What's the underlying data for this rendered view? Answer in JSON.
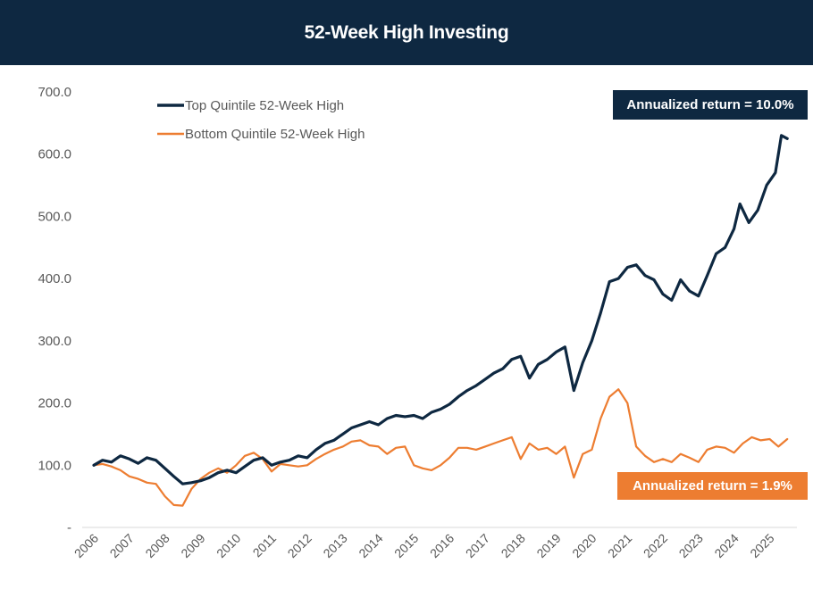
{
  "header": {
    "title": "52-Week High Investing"
  },
  "annotations": {
    "top": "Annualized return = 10.0%",
    "bottom": "Annualized return = 1.9%"
  },
  "colors": {
    "top_series": "#0e2841",
    "bottom_series": "#ed7d31",
    "header_bg": "#0e2841"
  },
  "chart_data": {
    "type": "line",
    "title": "52-Week High Investing",
    "xlabel": "",
    "ylabel": "",
    "ylim": [
      0,
      700
    ],
    "xlim": [
      "2006-01-01",
      "2025-09-01"
    ],
    "y_ticks": [
      "-",
      "100.0",
      "200.0",
      "300.0",
      "400.0",
      "500.0",
      "600.0",
      "700.0"
    ],
    "x_ticks": [
      "2006",
      "2007",
      "2008",
      "2009",
      "2010",
      "2011",
      "2012",
      "2013",
      "2014",
      "2015",
      "2016",
      "2017",
      "2018",
      "2019",
      "2020",
      "2021",
      "2022",
      "2023",
      "2024",
      "2025"
    ],
    "grid": false,
    "legend_position": "top-left",
    "series": [
      {
        "name": "Top Quintile 52-Week High",
        "color": "#0e2841",
        "points": [
          [
            "2006-01",
            100
          ],
          [
            "2006-04",
            108
          ],
          [
            "2006-07",
            105
          ],
          [
            "2006-10",
            115
          ],
          [
            "2007-01",
            110
          ],
          [
            "2007-04",
            103
          ],
          [
            "2007-07",
            112
          ],
          [
            "2007-10",
            108
          ],
          [
            "2008-01",
            95
          ],
          [
            "2008-04",
            82
          ],
          [
            "2008-07",
            70
          ],
          [
            "2008-10",
            72
          ],
          [
            "2009-01",
            75
          ],
          [
            "2009-04",
            80
          ],
          [
            "2009-07",
            88
          ],
          [
            "2009-10",
            92
          ],
          [
            "2010-01",
            88
          ],
          [
            "2010-04",
            98
          ],
          [
            "2010-07",
            108
          ],
          [
            "2010-10",
            112
          ],
          [
            "2011-01",
            100
          ],
          [
            "2011-04",
            105
          ],
          [
            "2011-07",
            108
          ],
          [
            "2011-10",
            115
          ],
          [
            "2012-01",
            112
          ],
          [
            "2012-04",
            125
          ],
          [
            "2012-07",
            135
          ],
          [
            "2012-10",
            140
          ],
          [
            "2013-01",
            150
          ],
          [
            "2013-04",
            160
          ],
          [
            "2013-07",
            165
          ],
          [
            "2013-10",
            170
          ],
          [
            "2014-01",
            165
          ],
          [
            "2014-04",
            175
          ],
          [
            "2014-07",
            180
          ],
          [
            "2014-10",
            178
          ],
          [
            "2015-01",
            180
          ],
          [
            "2015-04",
            175
          ],
          [
            "2015-07",
            185
          ],
          [
            "2015-10",
            190
          ],
          [
            "2016-01",
            198
          ],
          [
            "2016-04",
            210
          ],
          [
            "2016-07",
            220
          ],
          [
            "2016-10",
            228
          ],
          [
            "2017-01",
            238
          ],
          [
            "2017-04",
            248
          ],
          [
            "2017-07",
            255
          ],
          [
            "2017-10",
            270
          ],
          [
            "2018-01",
            275
          ],
          [
            "2018-04",
            240
          ],
          [
            "2018-07",
            262
          ],
          [
            "2018-10",
            270
          ],
          [
            "2019-01",
            282
          ],
          [
            "2019-04",
            290
          ],
          [
            "2019-07",
            220
          ],
          [
            "2019-10",
            265
          ],
          [
            "2020-01",
            300
          ],
          [
            "2020-04",
            345
          ],
          [
            "2020-07",
            395
          ],
          [
            "2020-10",
            400
          ],
          [
            "2021-01",
            418
          ],
          [
            "2021-04",
            422
          ],
          [
            "2021-07",
            405
          ],
          [
            "2021-10",
            398
          ],
          [
            "2022-01",
            375
          ],
          [
            "2022-04",
            365
          ],
          [
            "2022-07",
            398
          ],
          [
            "2022-10",
            380
          ],
          [
            "2023-01",
            372
          ],
          [
            "2023-04",
            405
          ],
          [
            "2023-07",
            440
          ],
          [
            "2023-10",
            450
          ],
          [
            "2024-01",
            480
          ],
          [
            "2024-03",
            520
          ],
          [
            "2024-06",
            490
          ],
          [
            "2024-09",
            510
          ],
          [
            "2024-12",
            550
          ],
          [
            "2025-03",
            570
          ],
          [
            "2025-05",
            630
          ],
          [
            "2025-07",
            625
          ]
        ]
      },
      {
        "name": "Bottom Quintile 52-Week High",
        "color": "#ed7d31",
        "points": [
          [
            "2006-01",
            100
          ],
          [
            "2006-04",
            102
          ],
          [
            "2006-07",
            98
          ],
          [
            "2006-10",
            92
          ],
          [
            "2007-01",
            82
          ],
          [
            "2007-04",
            78
          ],
          [
            "2007-07",
            72
          ],
          [
            "2007-10",
            70
          ],
          [
            "2008-01",
            50
          ],
          [
            "2008-04",
            36
          ],
          [
            "2008-07",
            35
          ],
          [
            "2008-10",
            62
          ],
          [
            "2009-01",
            78
          ],
          [
            "2009-04",
            88
          ],
          [
            "2009-07",
            95
          ],
          [
            "2009-10",
            88
          ],
          [
            "2010-01",
            100
          ],
          [
            "2010-04",
            115
          ],
          [
            "2010-07",
            120
          ],
          [
            "2010-10",
            110
          ],
          [
            "2011-01",
            90
          ],
          [
            "2011-04",
            102
          ],
          [
            "2011-07",
            100
          ],
          [
            "2011-10",
            98
          ],
          [
            "2012-01",
            100
          ],
          [
            "2012-04",
            110
          ],
          [
            "2012-07",
            118
          ],
          [
            "2012-10",
            125
          ],
          [
            "2013-01",
            130
          ],
          [
            "2013-04",
            138
          ],
          [
            "2013-07",
            140
          ],
          [
            "2013-10",
            132
          ],
          [
            "2014-01",
            130
          ],
          [
            "2014-04",
            118
          ],
          [
            "2014-07",
            128
          ],
          [
            "2014-10",
            130
          ],
          [
            "2015-01",
            100
          ],
          [
            "2015-04",
            95
          ],
          [
            "2015-07",
            92
          ],
          [
            "2015-10",
            100
          ],
          [
            "2016-01",
            112
          ],
          [
            "2016-04",
            128
          ],
          [
            "2016-07",
            128
          ],
          [
            "2016-10",
            125
          ],
          [
            "2017-01",
            130
          ],
          [
            "2017-04",
            135
          ],
          [
            "2017-07",
            140
          ],
          [
            "2017-10",
            145
          ],
          [
            "2018-01",
            110
          ],
          [
            "2018-04",
            135
          ],
          [
            "2018-07",
            125
          ],
          [
            "2018-10",
            128
          ],
          [
            "2019-01",
            118
          ],
          [
            "2019-04",
            130
          ],
          [
            "2019-07",
            80
          ],
          [
            "2019-10",
            118
          ],
          [
            "2020-01",
            125
          ],
          [
            "2020-04",
            175
          ],
          [
            "2020-07",
            210
          ],
          [
            "2020-10",
            222
          ],
          [
            "2021-01",
            200
          ],
          [
            "2021-04",
            130
          ],
          [
            "2021-07",
            115
          ],
          [
            "2021-10",
            105
          ],
          [
            "2022-01",
            110
          ],
          [
            "2022-04",
            105
          ],
          [
            "2022-07",
            118
          ],
          [
            "2022-10",
            112
          ],
          [
            "2023-01",
            105
          ],
          [
            "2023-04",
            125
          ],
          [
            "2023-07",
            130
          ],
          [
            "2023-10",
            128
          ],
          [
            "2024-01",
            120
          ],
          [
            "2024-04",
            135
          ],
          [
            "2024-07",
            145
          ],
          [
            "2024-10",
            140
          ],
          [
            "2025-01",
            142
          ],
          [
            "2025-04",
            130
          ],
          [
            "2025-07",
            142
          ]
        ]
      }
    ]
  }
}
